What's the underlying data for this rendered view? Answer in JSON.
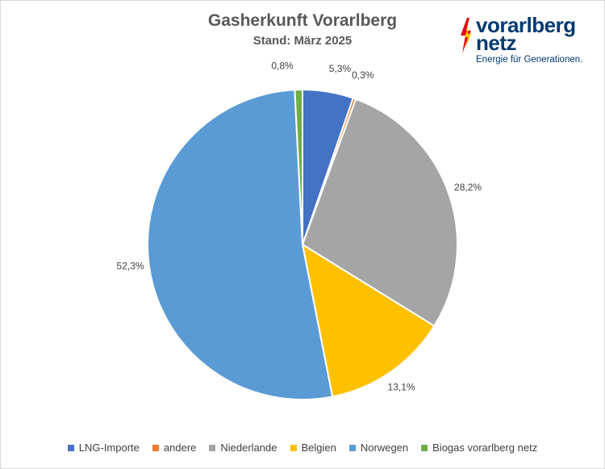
{
  "chart_data": {
    "type": "pie",
    "title": "Gasherkunft Vorarlberg",
    "subtitle": "Stand: März 2025",
    "categories": [
      "LNG-Importe",
      "andere",
      "Niederlande",
      "Belgien",
      "Norwegen",
      "Biogas vorarlberg netz"
    ],
    "values": [
      5.3,
      0.3,
      28.2,
      13.1,
      52.3,
      0.8
    ],
    "value_labels": [
      "5,3%",
      "0,3%",
      "28,2%",
      "13,1%",
      "52,3%",
      "0,8%"
    ],
    "colors": [
      "#4472c4",
      "#ed7d31",
      "#a5a5a5",
      "#ffc000",
      "#5b9bd5",
      "#70ad47"
    ],
    "start_angle_deg": 0,
    "direction": "clockwise",
    "legend": "bottom"
  },
  "logo": {
    "line1": "vorarlberg",
    "line2": "netz",
    "tagline": "Energie für Generationen.",
    "colors": [
      "#003a70",
      "#e30613",
      "#ffcc00"
    ]
  }
}
